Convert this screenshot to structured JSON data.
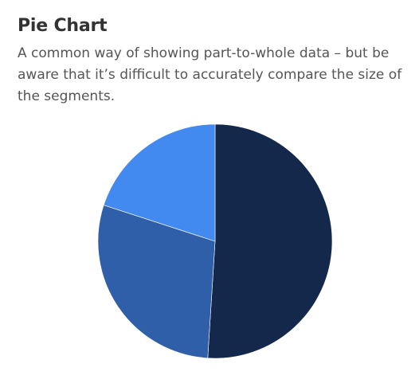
{
  "header": {
    "title": "Pie Chart",
    "subtitle": "A common way of showing part-to-whole data – but be aware that it’s difficult to accurately compare the size of the segments."
  },
  "chart_data": {
    "type": "pie",
    "start": "12 o'clock",
    "direction": "clockwise",
    "slices": [
      {
        "value": 51,
        "color": "#14284b"
      },
      {
        "value": 29,
        "color": "#2f5fa8"
      },
      {
        "value": 20,
        "color": "#438af0"
      }
    ],
    "legend": "none"
  }
}
